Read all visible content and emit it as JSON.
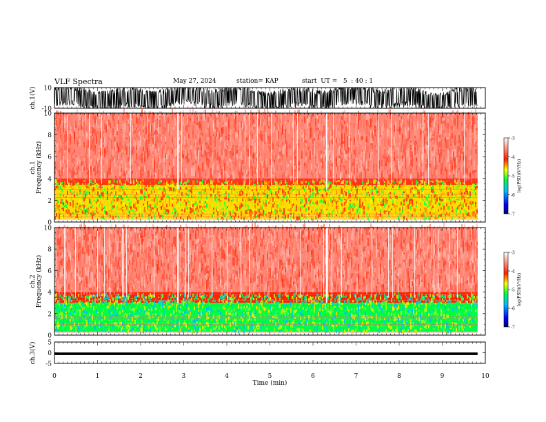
{
  "header": {
    "title": "VLF Spectra",
    "date": "May 27, 2024",
    "station": "station= KAP",
    "start_ut": "start  UT =   5  : 40 : 1"
  },
  "chart_data": [
    {
      "type": "line",
      "ylabel": "ch.1(V)",
      "ylim": [
        -10,
        10
      ],
      "yticks": [
        "10",
        "-10"
      ],
      "description_of_trace": "dense black time-series noise filling most of the range",
      "xlim": [
        0,
        10
      ]
    },
    {
      "type": "heatmap",
      "ylabel_line1": "ch.1",
      "ylabel_line2": "Frequency (kHz)",
      "ylim": [
        0,
        10
      ],
      "yticks": [
        "0",
        "2",
        "4",
        "6",
        "8",
        "10"
      ],
      "xlim": [
        0,
        10
      ],
      "data_end_min": 9.82,
      "colorbar": {
        "label": "log(PSD)(V²/Hz)",
        "ticks": [
          "-3",
          "-4",
          "-5",
          "-6",
          "-7"
        ],
        "range": [
          -7,
          -3
        ]
      },
      "bands": [
        {
          "from_khz": 4.0,
          "to_khz": 10.0,
          "level": -3.6
        },
        {
          "from_khz": 3.4,
          "to_khz": 4.0,
          "level": -4.0
        },
        {
          "from_khz": 0.3,
          "to_khz": 3.4,
          "level": -4.6
        }
      ],
      "vertical_gaps_min": [
        2.85,
        6.3
      ]
    },
    {
      "type": "heatmap",
      "ylabel_line1": "ch.2",
      "ylabel_line2": "Frequency (kHz)",
      "ylim": [
        0,
        10
      ],
      "yticks": [
        "0",
        "2",
        "4",
        "6",
        "8",
        "10"
      ],
      "xlim": [
        0,
        10
      ],
      "data_end_min": 9.82,
      "colorbar": {
        "label": "log(PSD)(V²/Hz)",
        "ticks": [
          "-3",
          "-4",
          "-5",
          "-6",
          "-7"
        ],
        "range": [
          -7,
          -3
        ]
      },
      "bands": [
        {
          "from_khz": 4.0,
          "to_khz": 10.0,
          "level": -3.6
        },
        {
          "from_khz": 3.0,
          "to_khz": 4.0,
          "level": -4.1
        },
        {
          "from_khz": 0.3,
          "to_khz": 3.0,
          "level": -5.2
        }
      ],
      "vertical_gaps_min": [
        2.85,
        6.3
      ]
    },
    {
      "type": "line",
      "ylabel": "ch.3(V)",
      "ylim": [
        -5,
        5
      ],
      "yticks": [
        "5",
        "0",
        "-5"
      ],
      "level_v": -0.5,
      "xlim": [
        0,
        10
      ],
      "xlabel": "Time (min)",
      "xticks": [
        "0",
        "1",
        "2",
        "3",
        "4",
        "5",
        "6",
        "7",
        "8",
        "9",
        "10"
      ]
    }
  ]
}
